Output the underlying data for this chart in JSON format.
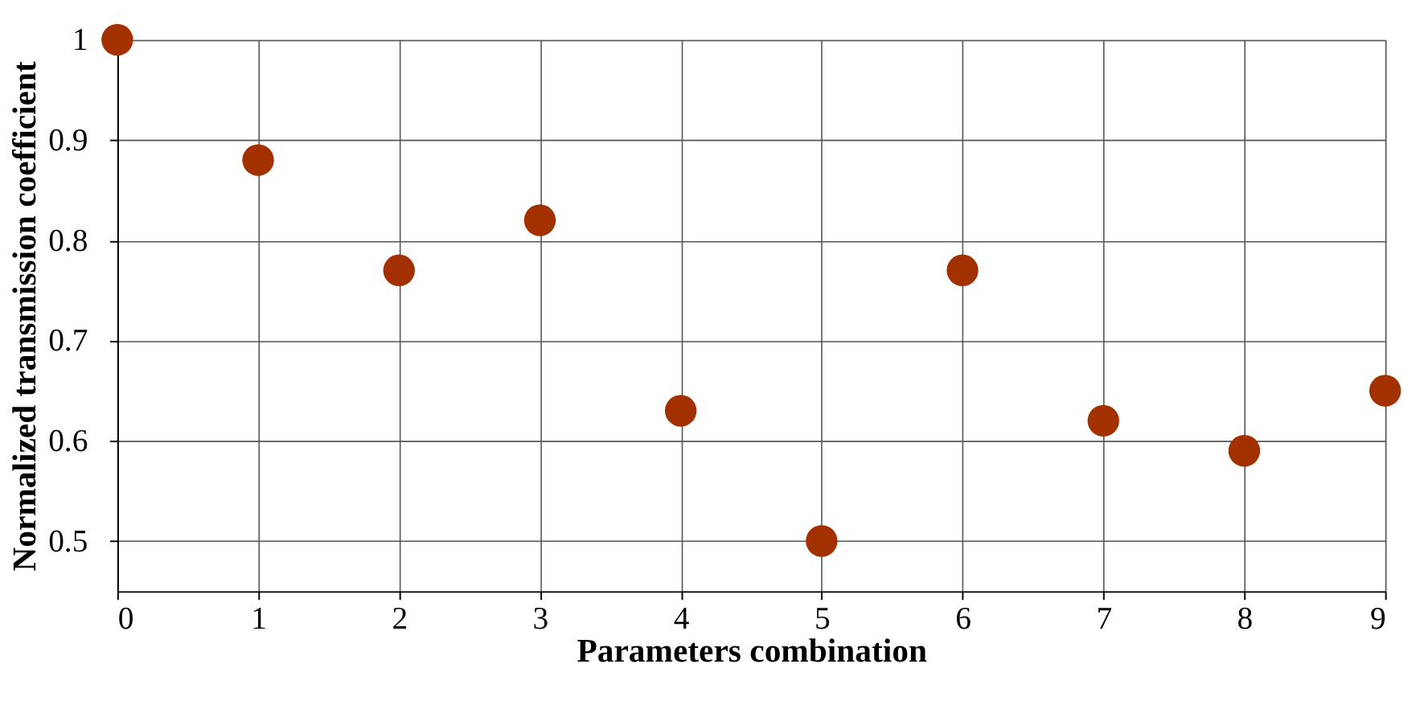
{
  "chart_data": {
    "type": "scatter",
    "xlabel": "Parameters combination",
    "ylabel": "Normalized transmission coefficient",
    "x": [
      0,
      1,
      2,
      3,
      4,
      5,
      6,
      7,
      8,
      9
    ],
    "series": [
      {
        "color": "#a33100",
        "values": [
          1.0,
          0.88,
          0.77,
          0.82,
          0.63,
          0.5,
          0.77,
          0.62,
          0.59,
          0.65
        ]
      }
    ],
    "xlim": [
      0,
      9
    ],
    "xticks": [
      0,
      1,
      2,
      3,
      4,
      5,
      6,
      7,
      8,
      9
    ],
    "ylim": [
      0.45,
      1.0
    ],
    "yticks": [
      0.5,
      0.6,
      0.7,
      0.8,
      0.9,
      {
        "value": 1,
        "label": "1"
      }
    ],
    "grid": true,
    "marker": "circle"
  }
}
